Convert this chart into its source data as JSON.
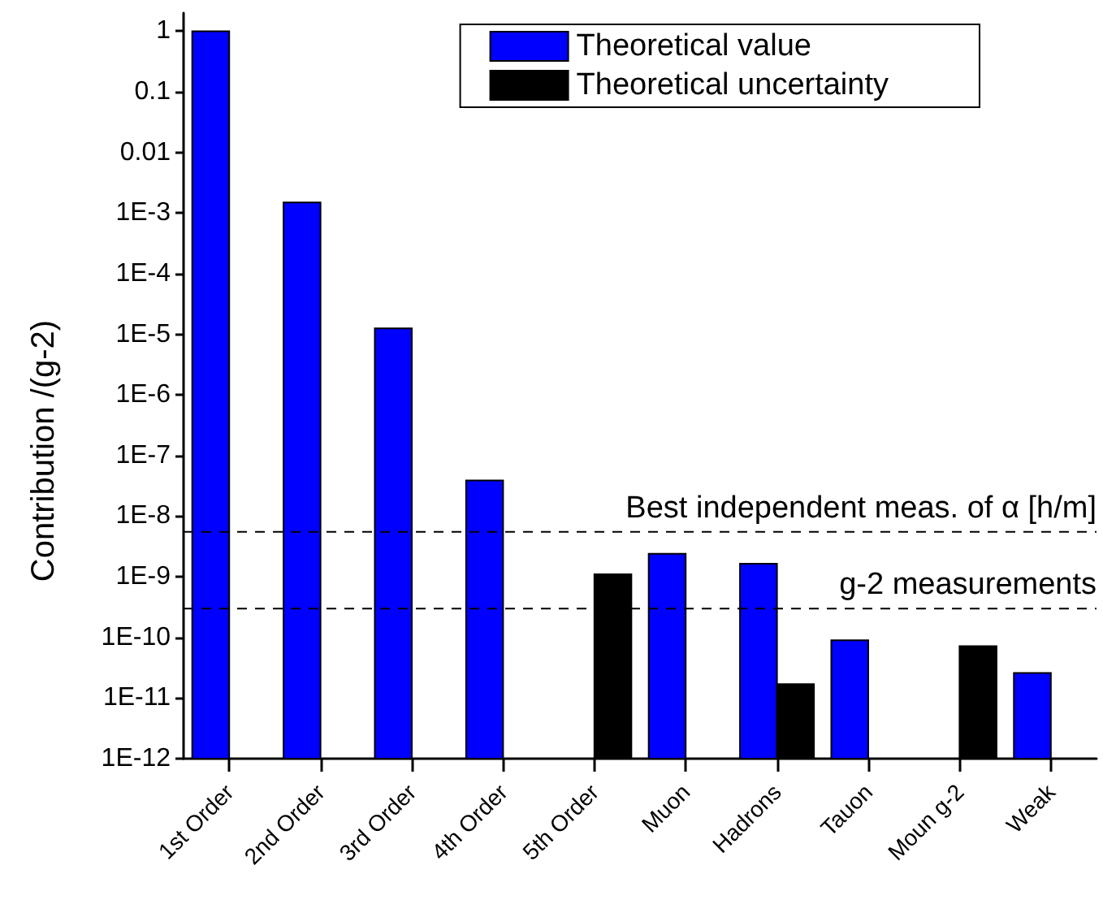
{
  "chart_data": {
    "type": "bar",
    "ylabel": "Contribution /(g-2)",
    "categories": [
      "1st Order",
      "2nd Order",
      "3rd Order",
      "4th Order",
      "5th Order",
      "Muon",
      "Hadrons",
      "Tauon",
      "Moun g-2",
      "Weak"
    ],
    "series": [
      {
        "name": "Theoretical value",
        "color": "#0000ff",
        "values": [
          1,
          0.0015,
          1.25e-05,
          3.9e-08,
          null,
          2.4e-09,
          1.65e-09,
          9e-11,
          null,
          2.6e-11
        ]
      },
      {
        "name": "Theoretical uncertainty",
        "color": "#000000",
        "values": [
          null,
          null,
          null,
          null,
          1.1e-09,
          null,
          1.7e-11,
          null,
          7.2e-11,
          null
        ]
      }
    ],
    "log": true,
    "ylim": [
      1e-12,
      2
    ],
    "yticks": [
      {
        "value": 1e-12,
        "label": "1E-12"
      },
      {
        "value": 1e-11,
        "label": "1E-11"
      },
      {
        "value": 1e-10,
        "label": "1E-10"
      },
      {
        "value": 1e-09,
        "label": "1E-9"
      },
      {
        "value": 1e-08,
        "label": "1E-8"
      },
      {
        "value": 1e-07,
        "label": "1E-7"
      },
      {
        "value": 1e-06,
        "label": "1E-6"
      },
      {
        "value": 1e-05,
        "label": "1E-5"
      },
      {
        "value": 0.0001,
        "label": "1E-4"
      },
      {
        "value": 0.001,
        "label": "1E-3"
      },
      0.01,
      0.1,
      1
    ],
    "ref_lines": [
      {
        "axis": "y",
        "value": 5.5e-09,
        "label": "Best independent meas. of α [h/m]",
        "color": "#000000",
        "line_style": "dashed"
      },
      {
        "axis": "y",
        "value": 3e-10,
        "label": "g-2 measurements",
        "color": "#000000",
        "line_style": "dashed"
      }
    ],
    "legend": "top right"
  }
}
